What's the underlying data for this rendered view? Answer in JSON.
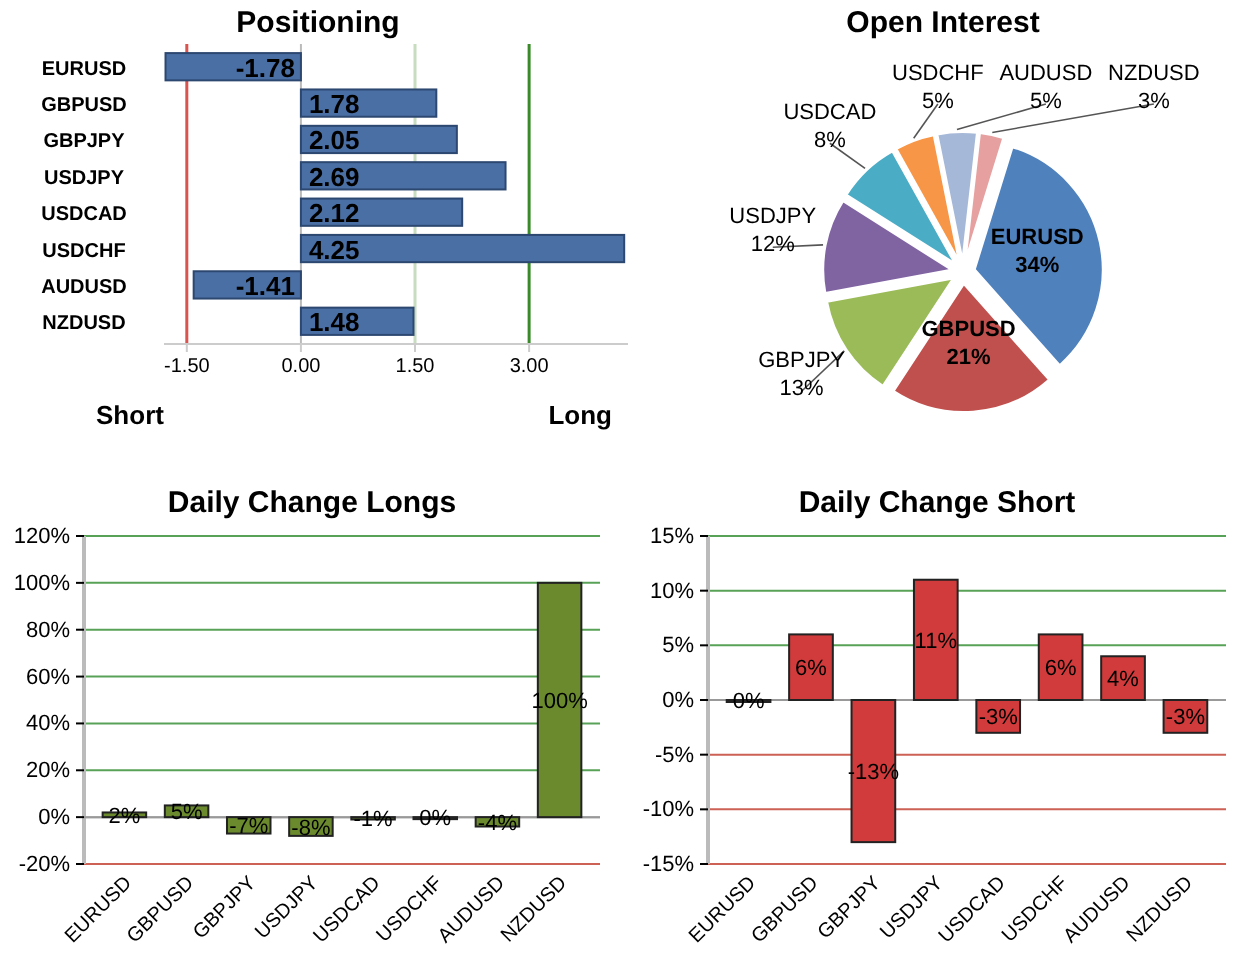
{
  "chart_data": [
    {
      "type": "bar",
      "title": "Positioning",
      "orientation": "horizontal",
      "categories": [
        "EURUSD",
        "GBPUSD",
        "GBPJPY",
        "USDJPY",
        "USDCAD",
        "USDCHF",
        "AUDUSD",
        "NZDUSD"
      ],
      "values": [
        -1.78,
        1.78,
        2.05,
        2.69,
        2.12,
        4.25,
        -1.41,
        1.48
      ],
      "value_labels": [
        "-1.78",
        "1.78",
        "2.05",
        "2.69",
        "2.12",
        "4.25",
        "-1.41",
        "1.48"
      ],
      "color": "#4a6fa5",
      "xlim": [
        -1.8,
        4.3
      ],
      "xticks": [
        {
          "value": -1.5,
          "label": "-1.50"
        },
        {
          "value": 0,
          "label": "0.00"
        },
        {
          "value": 1.5,
          "label": "1.50"
        },
        {
          "value": 3,
          "label": "3.00"
        }
      ],
      "ref_lines": [
        {
          "axis": "x",
          "value": -1.5,
          "color": "#d9534f"
        },
        {
          "axis": "x",
          "value": 1.5,
          "color": "#c8dcc0"
        },
        {
          "axis": "x",
          "value": 3,
          "color": "#3a8a2a"
        }
      ],
      "annotations": [
        "Short",
        "Long"
      ],
      "grid": false
    },
    {
      "type": "pie",
      "title": "Open Interest",
      "categories": [
        "EURUSD",
        "GBPUSD",
        "GBPJPY",
        "USDJPY",
        "USDCAD",
        "USDCHF",
        "AUDUSD",
        "NZDUSD"
      ],
      "values": [
        34,
        21,
        13,
        12,
        8,
        5,
        5,
        3
      ],
      "value_labels": [
        "34%",
        "21%",
        "13%",
        "12%",
        "8%",
        "5%",
        "5%",
        "3%"
      ],
      "colors": [
        "#4f81bd",
        "#c0504d",
        "#9bbb59",
        "#8064a2",
        "#4bacc6",
        "#f79646",
        "#a5b8d8",
        "#e6a0a0"
      ]
    },
    {
      "type": "bar",
      "title": "Daily Change Longs",
      "categories": [
        "EURUSD",
        "GBPUSD",
        "GBPJPY",
        "USDJPY",
        "USDCAD",
        "USDCHF",
        "AUDUSD",
        "NZDUSD"
      ],
      "values": [
        2,
        5,
        -7,
        -8,
        -1,
        0,
        -4,
        100
      ],
      "value_labels": [
        "2%",
        "5%",
        "-7%",
        "-8%",
        "-1%",
        "0%",
        "-4%",
        "100%"
      ],
      "color": "#6b8a2e",
      "ylim": [
        -20,
        120
      ],
      "yticks": [
        {
          "value": -20,
          "label": "-20%"
        },
        {
          "value": 0,
          "label": "0%"
        },
        {
          "value": 20,
          "label": "20%"
        },
        {
          "value": 40,
          "label": "40%"
        },
        {
          "value": 60,
          "label": "60%"
        },
        {
          "value": 80,
          "label": "80%"
        },
        {
          "value": 100,
          "label": "100%"
        },
        {
          "value": 120,
          "label": "120%"
        }
      ],
      "grid": "y"
    },
    {
      "type": "bar",
      "title": "Daily Change Short",
      "categories": [
        "EURUSD",
        "GBPUSD",
        "GBPJPY",
        "USDJPY",
        "USDCAD",
        "USDCHF",
        "AUDUSD",
        "NZDUSD"
      ],
      "values": [
        0,
        6,
        -13,
        11,
        -3,
        6,
        4,
        -3
      ],
      "value_labels": [
        "0%",
        "6%",
        "-13%",
        "11%",
        "-3%",
        "6%",
        "4%",
        "-3%"
      ],
      "color": "#d13b3b",
      "ylim": [
        -15,
        15
      ],
      "yticks": [
        {
          "value": -15,
          "label": "-15%"
        },
        {
          "value": -10,
          "label": "-10%"
        },
        {
          "value": -5,
          "label": "-5%"
        },
        {
          "value": 0,
          "label": "0%"
        },
        {
          "value": 5,
          "label": "5%"
        },
        {
          "value": 10,
          "label": "10%"
        },
        {
          "value": 15,
          "label": "15%"
        }
      ],
      "grid": "y"
    }
  ]
}
